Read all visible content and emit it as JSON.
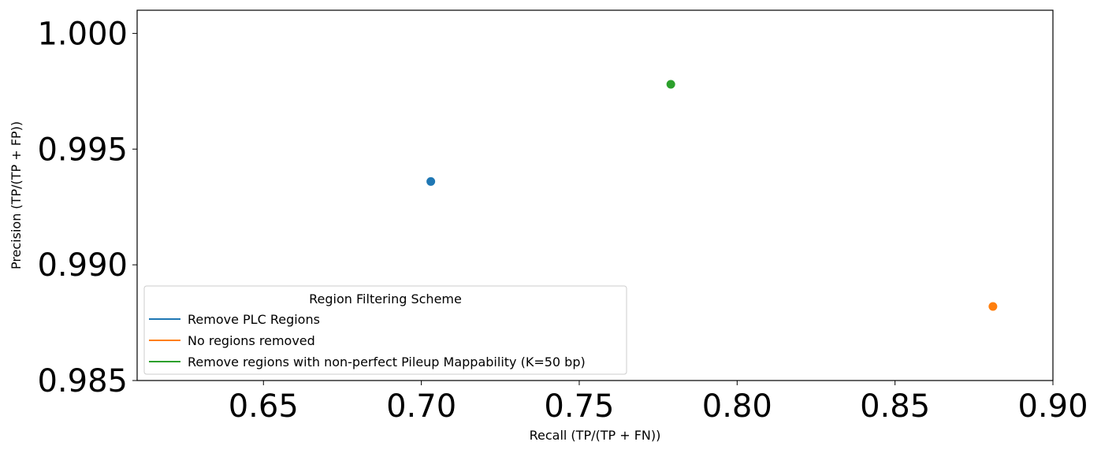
{
  "chart_data": {
    "type": "scatter",
    "title": "",
    "xlabel": "Recall (TP/(TP + FN))",
    "ylabel": "Precision (TP/(TP + FP))",
    "xlim": [
      0.61,
      0.9
    ],
    "ylim": [
      0.985,
      1.001
    ],
    "x_ticks": [
      0.65,
      0.7,
      0.75,
      0.8,
      0.85,
      0.9
    ],
    "x_tick_labels": [
      "0.65",
      "0.70",
      "0.75",
      "0.80",
      "0.85",
      "0.90"
    ],
    "y_ticks": [
      0.985,
      0.99,
      0.995,
      1.0
    ],
    "y_tick_labels": [
      "0.985",
      "0.990",
      "0.995",
      "1.000"
    ],
    "grid": false,
    "legend": {
      "title": "Region Filtering Scheme",
      "placement": "lower-left"
    },
    "series": [
      {
        "name": "Remove PLC Regions",
        "color": "#1f77b4",
        "x": [
          0.703
        ],
        "y": [
          0.9936
        ]
      },
      {
        "name": "No regions removed",
        "color": "#ff7f0e",
        "x": [
          0.881
        ],
        "y": [
          0.9882
        ]
      },
      {
        "name": "Remove regions with non-perfect Pileup Mappability (K=50 bp)",
        "color": "#2ca02c",
        "x": [
          0.779
        ],
        "y": [
          0.9978
        ]
      }
    ]
  }
}
